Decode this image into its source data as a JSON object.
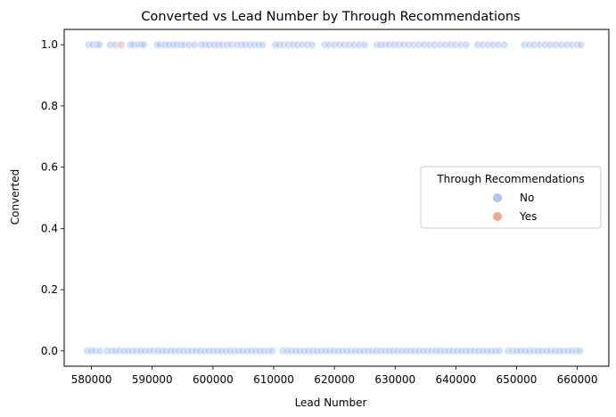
{
  "chart_data": {
    "type": "scatter",
    "title": "Converted vs Lead Number by Through Recommendations",
    "xlabel": "Lead Number",
    "ylabel": "Converted",
    "xlim": [
      575500,
      665200
    ],
    "ylim": [
      -0.05,
      1.05
    ],
    "xticks": [
      580000,
      590000,
      600000,
      610000,
      620000,
      630000,
      640000,
      650000,
      660000
    ],
    "xtick_labels": [
      "580000",
      "590000",
      "600000",
      "610000",
      "620000",
      "630000",
      "640000",
      "650000",
      "660000"
    ],
    "yticks": [
      0.0,
      0.2,
      0.4,
      0.6,
      0.8,
      1.0
    ],
    "ytick_labels": [
      "0.0",
      "0.2",
      "0.4",
      "0.6",
      "0.8",
      "1.0"
    ],
    "grid": false,
    "legend": {
      "title": "Through Recommendations",
      "placement": "center-right",
      "entries": [
        "No",
        "Yes"
      ]
    },
    "series": [
      {
        "name": "No",
        "color": "#a9c5f7",
        "points": [
          [
            579600,
            1
          ],
          [
            580200,
            1
          ],
          [
            580900,
            1
          ],
          [
            581300,
            1
          ],
          [
            583100,
            1
          ],
          [
            583900,
            1
          ],
          [
            586400,
            1
          ],
          [
            586900,
            1
          ],
          [
            587700,
            1
          ],
          [
            588200,
            1
          ],
          [
            588600,
            1
          ],
          [
            590800,
            1
          ],
          [
            591300,
            1
          ],
          [
            592100,
            1
          ],
          [
            592800,
            1
          ],
          [
            593400,
            1
          ],
          [
            594000,
            1
          ],
          [
            594700,
            1
          ],
          [
            595300,
            1
          ],
          [
            596100,
            1
          ],
          [
            597000,
            1
          ],
          [
            598100,
            1
          ],
          [
            598700,
            1
          ],
          [
            599400,
            1
          ],
          [
            600200,
            1
          ],
          [
            600900,
            1
          ],
          [
            601500,
            1
          ],
          [
            602300,
            1
          ],
          [
            603000,
            1
          ],
          [
            603900,
            1
          ],
          [
            604700,
            1
          ],
          [
            605300,
            1
          ],
          [
            606100,
            1
          ],
          [
            606800,
            1
          ],
          [
            607500,
            1
          ],
          [
            608200,
            1
          ],
          [
            610300,
            1
          ],
          [
            610900,
            1
          ],
          [
            611600,
            1
          ],
          [
            612400,
            1
          ],
          [
            613200,
            1
          ],
          [
            613900,
            1
          ],
          [
            614700,
            1
          ],
          [
            615500,
            1
          ],
          [
            616300,
            1
          ],
          [
            618400,
            1
          ],
          [
            619100,
            1
          ],
          [
            620000,
            1
          ],
          [
            620800,
            1
          ],
          [
            621600,
            1
          ],
          [
            622400,
            1
          ],
          [
            623200,
            1
          ],
          [
            624100,
            1
          ],
          [
            625000,
            1
          ],
          [
            627000,
            1
          ],
          [
            627600,
            1
          ],
          [
            628300,
            1
          ],
          [
            629000,
            1
          ],
          [
            629800,
            1
          ],
          [
            630600,
            1
          ],
          [
            631400,
            1
          ],
          [
            632200,
            1
          ],
          [
            633000,
            1
          ],
          [
            633900,
            1
          ],
          [
            634700,
            1
          ],
          [
            635600,
            1
          ],
          [
            636500,
            1
          ],
          [
            637400,
            1
          ],
          [
            638200,
            1
          ],
          [
            639100,
            1
          ],
          [
            639900,
            1
          ],
          [
            640800,
            1
          ],
          [
            641700,
            1
          ],
          [
            643600,
            1
          ],
          [
            644400,
            1
          ],
          [
            645300,
            1
          ],
          [
            646100,
            1
          ],
          [
            647000,
            1
          ],
          [
            648000,
            1
          ],
          [
            651300,
            1
          ],
          [
            652100,
            1
          ],
          [
            652900,
            1
          ],
          [
            653800,
            1
          ],
          [
            654700,
            1
          ],
          [
            655500,
            1
          ],
          [
            656400,
            1
          ],
          [
            657300,
            1
          ],
          [
            658200,
            1
          ],
          [
            659100,
            1
          ],
          [
            660000,
            1
          ],
          [
            660600,
            1
          ],
          [
            579300,
            0
          ],
          [
            580000,
            0
          ],
          [
            580600,
            0
          ],
          [
            581400,
            0
          ],
          [
            582600,
            0
          ],
          [
            583300,
            0
          ],
          [
            583900,
            0
          ],
          [
            584600,
            0
          ],
          [
            585300,
            0
          ],
          [
            586000,
            0
          ],
          [
            586700,
            0
          ],
          [
            587400,
            0
          ],
          [
            588100,
            0
          ],
          [
            588800,
            0
          ],
          [
            589500,
            0
          ],
          [
            590200,
            0
          ],
          [
            590900,
            0
          ],
          [
            591600,
            0
          ],
          [
            592300,
            0
          ],
          [
            593000,
            0
          ],
          [
            593700,
            0
          ],
          [
            594400,
            0
          ],
          [
            595100,
            0
          ],
          [
            595800,
            0
          ],
          [
            596500,
            0
          ],
          [
            597200,
            0
          ],
          [
            597900,
            0
          ],
          [
            598600,
            0
          ],
          [
            599300,
            0
          ],
          [
            600000,
            0
          ],
          [
            600700,
            0
          ],
          [
            601400,
            0
          ],
          [
            602100,
            0
          ],
          [
            602800,
            0
          ],
          [
            603500,
            0
          ],
          [
            604200,
            0
          ],
          [
            604900,
            0
          ],
          [
            605600,
            0
          ],
          [
            606300,
            0
          ],
          [
            607000,
            0
          ],
          [
            607700,
            0
          ],
          [
            608400,
            0
          ],
          [
            609100,
            0
          ],
          [
            609700,
            0
          ],
          [
            611500,
            0
          ],
          [
            612200,
            0
          ],
          [
            612900,
            0
          ],
          [
            613600,
            0
          ],
          [
            614300,
            0
          ],
          [
            615000,
            0
          ],
          [
            615700,
            0
          ],
          [
            616400,
            0
          ],
          [
            617100,
            0
          ],
          [
            617800,
            0
          ],
          [
            618500,
            0
          ],
          [
            619200,
            0
          ],
          [
            619900,
            0
          ],
          [
            620600,
            0
          ],
          [
            621300,
            0
          ],
          [
            622000,
            0
          ],
          [
            622700,
            0
          ],
          [
            623400,
            0
          ],
          [
            624100,
            0
          ],
          [
            624800,
            0
          ],
          [
            625500,
            0
          ],
          [
            626200,
            0
          ],
          [
            626900,
            0
          ],
          [
            627600,
            0
          ],
          [
            628300,
            0
          ],
          [
            629000,
            0
          ],
          [
            629700,
            0
          ],
          [
            630400,
            0
          ],
          [
            631100,
            0
          ],
          [
            631800,
            0
          ],
          [
            632500,
            0
          ],
          [
            633200,
            0
          ],
          [
            633900,
            0
          ],
          [
            634600,
            0
          ],
          [
            635300,
            0
          ],
          [
            636000,
            0
          ],
          [
            636700,
            0
          ],
          [
            637400,
            0
          ],
          [
            638100,
            0
          ],
          [
            638800,
            0
          ],
          [
            639500,
            0
          ],
          [
            640200,
            0
          ],
          [
            640900,
            0
          ],
          [
            641600,
            0
          ],
          [
            642300,
            0
          ],
          [
            643000,
            0
          ],
          [
            643700,
            0
          ],
          [
            644400,
            0
          ],
          [
            645100,
            0
          ],
          [
            645800,
            0
          ],
          [
            646500,
            0
          ],
          [
            647200,
            0
          ],
          [
            648600,
            0
          ],
          [
            649300,
            0
          ],
          [
            650000,
            0
          ],
          [
            650700,
            0
          ],
          [
            651400,
            0
          ],
          [
            652100,
            0
          ],
          [
            652800,
            0
          ],
          [
            653500,
            0
          ],
          [
            654200,
            0
          ],
          [
            654900,
            0
          ],
          [
            655600,
            0
          ],
          [
            656300,
            0
          ],
          [
            657000,
            0
          ],
          [
            657700,
            0
          ],
          [
            658400,
            0
          ],
          [
            659100,
            0
          ],
          [
            659800,
            0
          ],
          [
            660400,
            0
          ]
        ]
      },
      {
        "name": "Yes",
        "color": "#f0a98e",
        "points": [
          [
            584900,
            1
          ]
        ]
      }
    ]
  }
}
